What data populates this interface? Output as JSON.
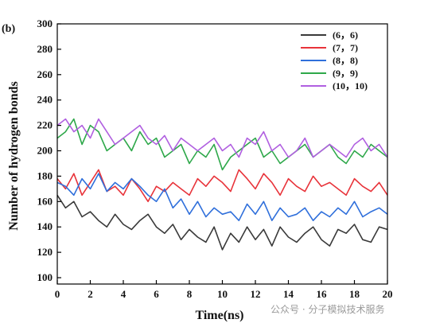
{
  "chart_data": {
    "type": "line",
    "panel_label": "(b)",
    "xlabel": "Time(ns)",
    "ylabel": "Number of hydrogen bonds",
    "xlim": [
      0,
      20
    ],
    "ylim": [
      95,
      300
    ],
    "x_ticks": [
      0,
      2,
      4,
      6,
      8,
      10,
      12,
      14,
      16,
      18,
      20
    ],
    "y_ticks": [
      100,
      120,
      140,
      160,
      180,
      200,
      220,
      240,
      260,
      280,
      300
    ],
    "legend_position": "top-right",
    "x": [
      0,
      0.5,
      1,
      1.5,
      2,
      2.5,
      3,
      3.5,
      4,
      4.5,
      5,
      5.5,
      6,
      6.5,
      7,
      7.5,
      8,
      8.5,
      9,
      9.5,
      10,
      10.5,
      11,
      11.5,
      12,
      12.5,
      13,
      13.5,
      14,
      14.5,
      15,
      15.5,
      16,
      16.5,
      17,
      17.5,
      18,
      18.5,
      19,
      19.5,
      20
    ],
    "series": [
      {
        "name": "(6，6)",
        "color": "#3a3a3a",
        "values": [
          165,
          155,
          160,
          148,
          152,
          145,
          140,
          150,
          142,
          138,
          145,
          150,
          140,
          135,
          142,
          130,
          138,
          132,
          128,
          140,
          122,
          135,
          128,
          140,
          130,
          138,
          125,
          140,
          132,
          128,
          135,
          140,
          130,
          125,
          138,
          135,
          142,
          130,
          128,
          140,
          138
        ]
      },
      {
        "name": "(7，7)",
        "color": "#e8333a",
        "values": [
          178,
          170,
          182,
          165,
          175,
          185,
          168,
          172,
          165,
          178,
          170,
          160,
          172,
          168,
          175,
          170,
          165,
          178,
          172,
          180,
          175,
          168,
          185,
          178,
          170,
          182,
          175,
          165,
          178,
          172,
          168,
          180,
          172,
          175,
          170,
          165,
          178,
          172,
          168,
          175,
          165
        ]
      },
      {
        "name": "(8，8)",
        "color": "#2f6fdb",
        "values": [
          175,
          172,
          165,
          178,
          170,
          182,
          168,
          175,
          170,
          178,
          172,
          165,
          160,
          170,
          155,
          162,
          150,
          160,
          148,
          155,
          150,
          152,
          145,
          158,
          150,
          160,
          145,
          155,
          148,
          150,
          155,
          145,
          152,
          148,
          155,
          150,
          160,
          148,
          152,
          155,
          150
        ]
      },
      {
        "name": "(9，9)",
        "color": "#2ea84a",
        "values": [
          210,
          215,
          225,
          205,
          220,
          215,
          200,
          205,
          210,
          200,
          215,
          205,
          210,
          195,
          200,
          205,
          190,
          200,
          195,
          205,
          185,
          195,
          200,
          205,
          210,
          195,
          200,
          190,
          195,
          200,
          205,
          195,
          200,
          205,
          195,
          190,
          200,
          195,
          205,
          200,
          195
        ]
      },
      {
        "name": "(10，10)",
        "color": "#b05fe0",
        "values": [
          220,
          225,
          215,
          220,
          210,
          225,
          215,
          205,
          210,
          215,
          220,
          210,
          205,
          212,
          200,
          210,
          205,
          200,
          205,
          210,
          200,
          205,
          195,
          210,
          205,
          215,
          200,
          205,
          195,
          200,
          210,
          195,
          200,
          205,
          200,
          195,
          205,
          210,
          200,
          205,
          195
        ]
      }
    ]
  },
  "watermark": "公众号 · 分子模拟技术服务"
}
